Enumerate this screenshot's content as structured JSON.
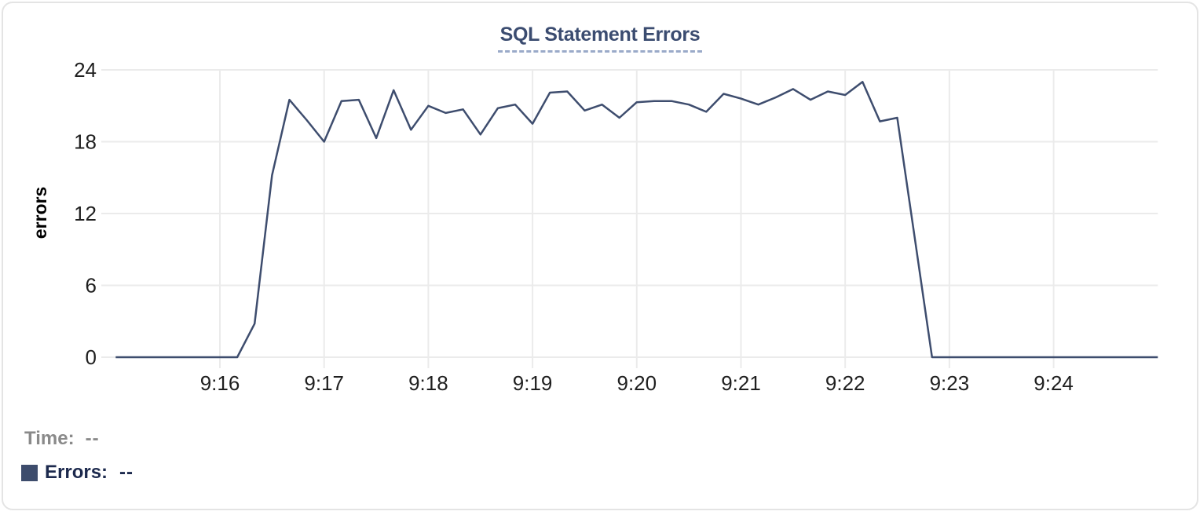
{
  "chart_data": {
    "type": "line",
    "title": "SQL Statement Errors",
    "ylabel": "errors",
    "xlabel": "",
    "ylim": [
      0,
      24
    ],
    "y_tick_labels": [
      "0",
      "6",
      "12",
      "18",
      "24"
    ],
    "x_tick_labels": [
      "9:16",
      "9:17",
      "9:18",
      "9:19",
      "9:20",
      "9:21",
      "9:22",
      "9:23",
      "9:24"
    ],
    "x_start": "9:15:00",
    "x_end": "9:25:00",
    "interval_seconds": 10,
    "grid": true,
    "legend_position": "bottom-left",
    "series": [
      {
        "name": "Errors",
        "color": "#3e4d6e",
        "times": [
          "9:15:00",
          "9:15:10",
          "9:15:20",
          "9:15:30",
          "9:15:40",
          "9:15:50",
          "9:16:00",
          "9:16:10",
          "9:16:20",
          "9:16:30",
          "9:16:40",
          "9:16:50",
          "9:17:00",
          "9:17:10",
          "9:17:20",
          "9:17:30",
          "9:17:40",
          "9:17:50",
          "9:18:00",
          "9:18:10",
          "9:18:20",
          "9:18:30",
          "9:18:40",
          "9:18:50",
          "9:19:00",
          "9:19:10",
          "9:19:20",
          "9:19:30",
          "9:19:40",
          "9:19:50",
          "9:20:00",
          "9:20:10",
          "9:20:20",
          "9:20:30",
          "9:20:40",
          "9:20:50",
          "9:21:00",
          "9:21:10",
          "9:21:20",
          "9:21:30",
          "9:21:40",
          "9:21:50",
          "9:22:00",
          "9:22:10",
          "9:22:20",
          "9:22:30",
          "9:22:40",
          "9:22:50",
          "9:23:00",
          "9:23:10",
          "9:23:20",
          "9:23:30",
          "9:23:40",
          "9:23:50",
          "9:24:00",
          "9:24:10",
          "9:24:20",
          "9:24:30",
          "9:24:40",
          "9:24:50",
          "9:25:00"
        ],
        "values": [
          0,
          0,
          0,
          0,
          0,
          0,
          0,
          0,
          2.8,
          15.2,
          21.5,
          19.8,
          18,
          21.4,
          21.5,
          18.3,
          22.3,
          19,
          21,
          20.4,
          20.7,
          18.6,
          20.8,
          21.1,
          19.5,
          22.1,
          22.2,
          20.6,
          21.1,
          20,
          21.3,
          21.4,
          21.4,
          21.1,
          20.5,
          22,
          21.6,
          21.1,
          21.7,
          22.4,
          21.5,
          22.2,
          21.9,
          23,
          19.7,
          20,
          10,
          0,
          0,
          0,
          0,
          0,
          0,
          0,
          0,
          0,
          0,
          0,
          0,
          0,
          0
        ]
      }
    ]
  },
  "tooltip": {
    "time_label": "Time:",
    "time_value": "--",
    "errors_label": "Errors:",
    "errors_value": "--"
  },
  "colors": {
    "title": "#3b4c70",
    "title_underline": "#9aaac9",
    "line": "#3e4d6e",
    "swatch": "#3d4c6c",
    "grid": "#ebebeb",
    "axis_text": "#1f1f1f",
    "time_text": "#8a8a8a",
    "errors_text": "#1c294d",
    "card_border": "#e4e4e4"
  }
}
